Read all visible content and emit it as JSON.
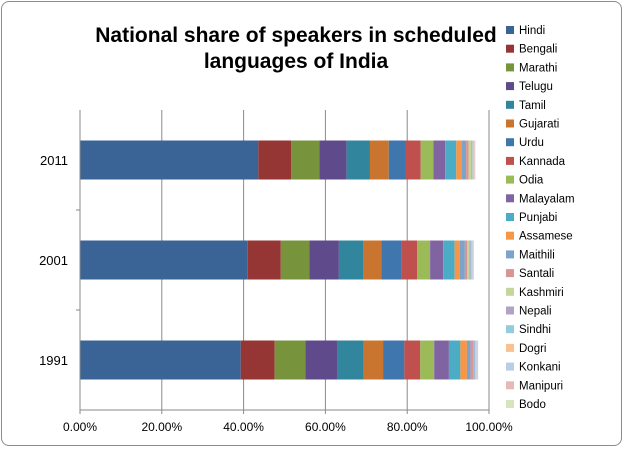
{
  "chart_data": {
    "type": "bar",
    "orientation": "horizontal",
    "stacked": true,
    "title": "National share of speakers in scheduled languages of India",
    "categories": [
      "1991",
      "2001",
      "2011"
    ],
    "x_axis": {
      "range": [
        0,
        100
      ],
      "tick_values": [
        0,
        20,
        40,
        60,
        80,
        100
      ],
      "tick_labels": [
        "0.00%",
        "20.00%",
        "40.00%",
        "60.00%",
        "80.00%",
        "100.00%"
      ]
    },
    "grid": "vertical",
    "legend_position": "right",
    "series": [
      {
        "name": "Hindi",
        "color": "#3a6495",
        "values": [
          39.3,
          41.0,
          43.6
        ]
      },
      {
        "name": "Bengali",
        "color": "#963634",
        "values": [
          8.3,
          8.1,
          8.0
        ]
      },
      {
        "name": "Marathi",
        "color": "#77933c",
        "values": [
          7.5,
          7.0,
          6.9
        ]
      },
      {
        "name": "Telugu",
        "color": "#5f4b8b",
        "values": [
          7.9,
          7.2,
          6.7
        ]
      },
      {
        "name": "Tamil",
        "color": "#31859c",
        "values": [
          6.3,
          5.9,
          5.7
        ]
      },
      {
        "name": "Gujarati",
        "color": "#c9752f",
        "values": [
          4.8,
          4.5,
          4.6
        ]
      },
      {
        "name": "Urdu",
        "color": "#3f76ad",
        "values": [
          5.2,
          5.0,
          4.2
        ]
      },
      {
        "name": "Kannada",
        "color": "#c0504d",
        "values": [
          3.9,
          3.7,
          3.6
        ]
      },
      {
        "name": "Odia",
        "color": "#9bbb59",
        "values": [
          3.4,
          3.2,
          3.1
        ]
      },
      {
        "name": "Malayalam",
        "color": "#8064a2",
        "values": [
          3.6,
          3.2,
          2.9
        ]
      },
      {
        "name": "Punjabi",
        "color": "#4bacc6",
        "values": [
          2.8,
          2.8,
          2.7
        ]
      },
      {
        "name": "Assamese",
        "color": "#f79646",
        "values": [
          1.6,
          1.3,
          1.3
        ]
      },
      {
        "name": "Maithili",
        "color": "#7ea3cb",
        "values": [
          0.9,
          1.2,
          1.1
        ]
      },
      {
        "name": "Santali",
        "color": "#d99594",
        "values": [
          0.6,
          0.6,
          0.6
        ]
      },
      {
        "name": "Kashmiri",
        "color": "#c3d69b",
        "values": [
          0.05,
          0.5,
          0.6
        ]
      },
      {
        "name": "Nepali",
        "color": "#b3a2c7",
        "values": [
          0.3,
          0.3,
          0.2
        ]
      },
      {
        "name": "Sindhi",
        "color": "#93cddd",
        "values": [
          0.2,
          0.2,
          0.2
        ]
      },
      {
        "name": "Dogri",
        "color": "#fac090",
        "values": [
          0.2,
          0.2,
          0.2
        ]
      },
      {
        "name": "Konkani",
        "color": "#b9cde5",
        "values": [
          0.2,
          0.2,
          0.2
        ]
      },
      {
        "name": "Manipuri",
        "color": "#e6b9b8",
        "values": [
          0.15,
          0.1,
          0.15
        ]
      },
      {
        "name": "Bodo",
        "color": "#d7e4bd",
        "values": [
          0.15,
          0.1,
          0.12
        ]
      }
    ]
  }
}
